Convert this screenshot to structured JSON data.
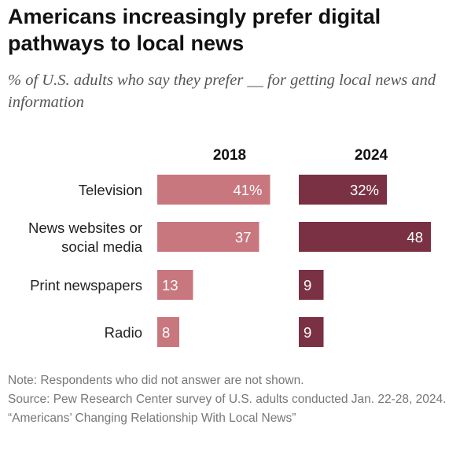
{
  "title": "Americans increasingly prefer digital pathways to local news",
  "subtitle": "% of U.S. adults who say they prefer __ for getting local news and information",
  "note": "Note: Respondents who did not answer are not shown.",
  "source": "Source: Pew Research Center survey of U.S. adults conducted Jan. 22-28, 2024.",
  "report": "“Americans’ Changing Relationship With Local News”",
  "chart_data": {
    "type": "bar",
    "orientation": "horizontal",
    "layout": "small-multiples",
    "categories": [
      [
        "Television"
      ],
      [
        "News websites or",
        "social media"
      ],
      [
        "Print newspapers"
      ],
      [
        "Radio"
      ]
    ],
    "series": [
      {
        "name": "2018",
        "values": [
          41,
          37,
          13,
          8
        ],
        "labels": [
          "41%",
          "37",
          "13",
          "8"
        ],
        "color": "#c9777f"
      },
      {
        "name": "2024",
        "values": [
          32,
          48,
          9,
          9
        ],
        "labels": [
          "32%",
          "48",
          "9",
          "9"
        ],
        "color": "#7a3144"
      }
    ],
    "xlim": [
      0,
      48
    ],
    "grid": false,
    "legend": "none"
  }
}
